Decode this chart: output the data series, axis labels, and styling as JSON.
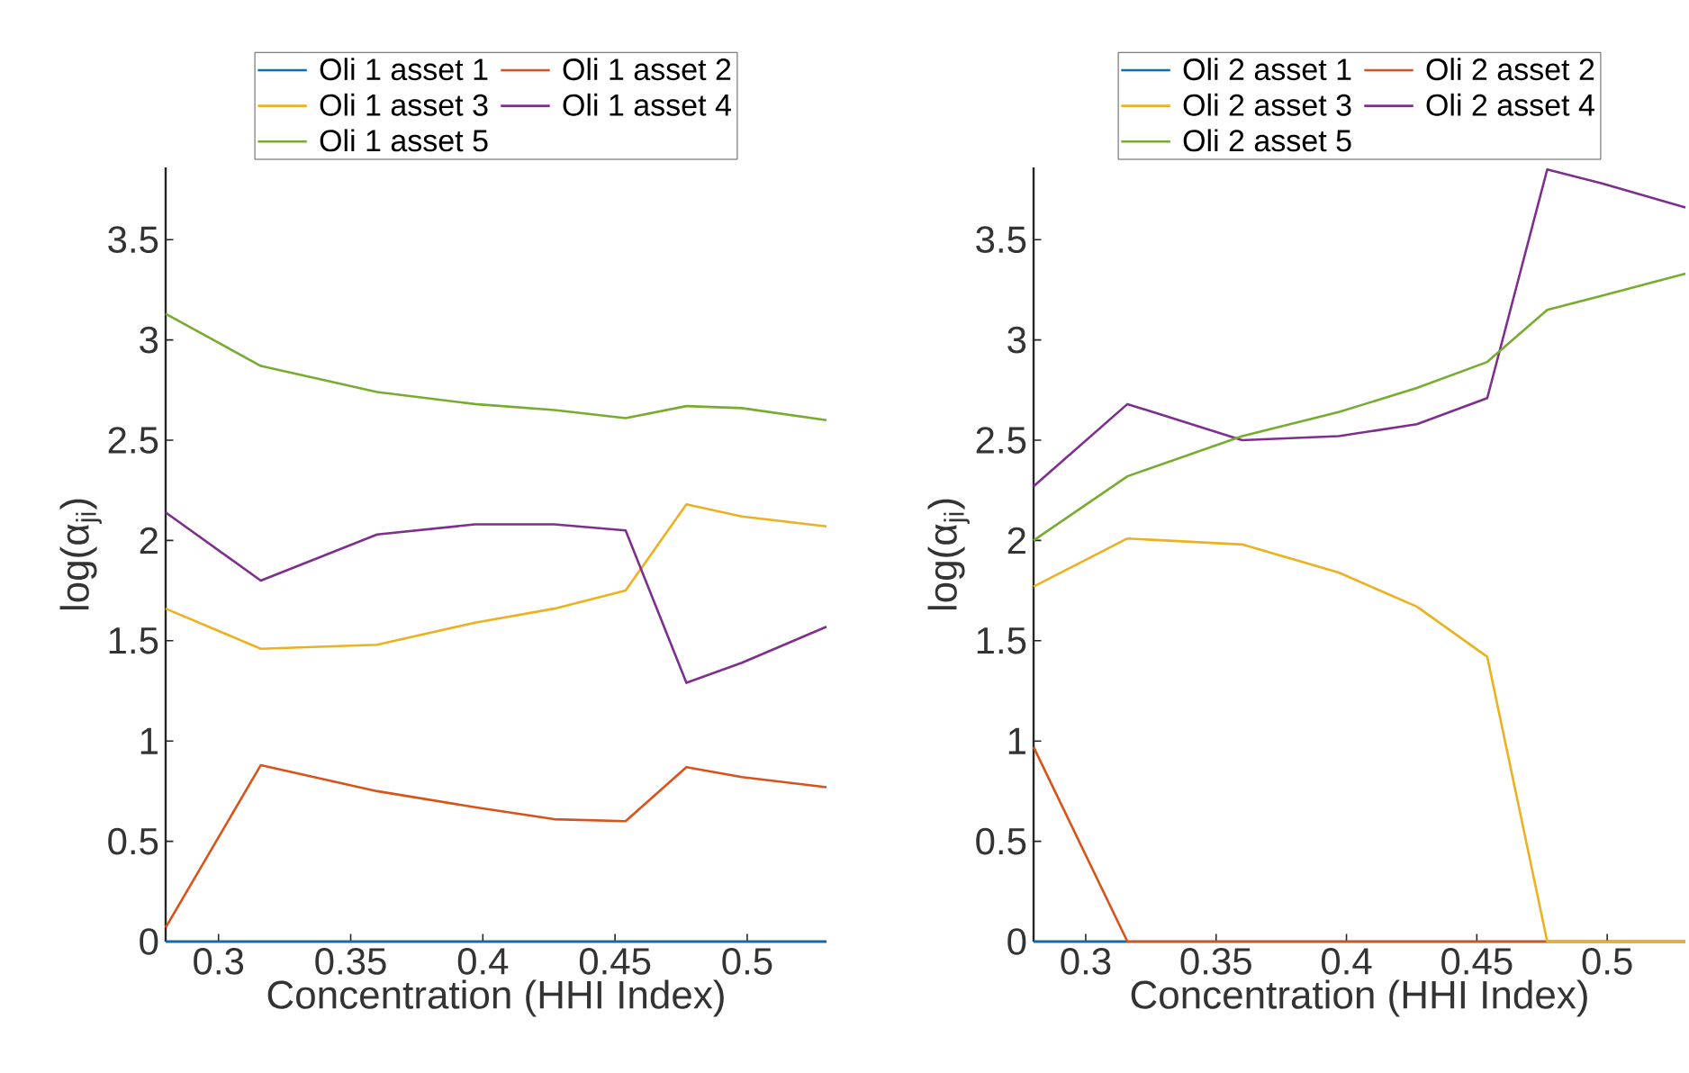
{
  "chart_data": [
    {
      "type": "line",
      "xlabel": "Concentration (HHI Index)",
      "ylabel": "log(α$_{ji}$)",
      "x": [
        0.28,
        0.316,
        0.36,
        0.397,
        0.427,
        0.454,
        0.477,
        0.498,
        0.53
      ],
      "xlim": [
        0.28,
        0.53
      ],
      "ylim": [
        0,
        3.86
      ],
      "xticks": [
        0.3,
        0.35,
        0.4,
        0.45,
        0.5
      ],
      "yticks": [
        0,
        0.5,
        1,
        1.5,
        2,
        2.5,
        3,
        3.5
      ],
      "legend": "top",
      "grid": false,
      "series": [
        {
          "name": "Oli 1 asset 1",
          "color": "#0072bd",
          "values": [
            0,
            0,
            0,
            0,
            0,
            0,
            0,
            0,
            0
          ]
        },
        {
          "name": "Oli 1 asset 2",
          "color": "#d95319",
          "values": [
            0.07,
            0.88,
            0.75,
            0.67,
            0.61,
            0.6,
            0.87,
            0.82,
            0.77
          ]
        },
        {
          "name": "Oli 1 asset 3",
          "color": "#edb120",
          "values": [
            1.66,
            1.46,
            1.48,
            1.59,
            1.66,
            1.75,
            2.18,
            2.12,
            2.07
          ]
        },
        {
          "name": "Oli 1 asset 4",
          "color": "#7e2f8e",
          "values": [
            2.14,
            1.8,
            2.03,
            2.08,
            2.08,
            2.05,
            1.29,
            1.39,
            1.57
          ]
        },
        {
          "name": "Oli 1 asset 5",
          "color": "#77ac30",
          "values": [
            3.13,
            2.87,
            2.74,
            2.68,
            2.65,
            2.61,
            2.67,
            2.66,
            2.6
          ]
        }
      ]
    },
    {
      "type": "line",
      "xlabel": "Concentration (HHI Index)",
      "ylabel": "log(α$_{ji}$)",
      "x": [
        0.28,
        0.316,
        0.36,
        0.397,
        0.427,
        0.454,
        0.477,
        0.498,
        0.53
      ],
      "xlim": [
        0.28,
        0.53
      ],
      "ylim": [
        0,
        3.86
      ],
      "xticks": [
        0.3,
        0.35,
        0.4,
        0.45,
        0.5
      ],
      "yticks": [
        0,
        0.5,
        1,
        1.5,
        2,
        2.5,
        3,
        3.5
      ],
      "legend": "top",
      "grid": false,
      "series": [
        {
          "name": "Oli 2 asset 1",
          "color": "#0072bd",
          "values": [
            0,
            0,
            null,
            null,
            null,
            null,
            null,
            null,
            null
          ]
        },
        {
          "name": "Oli 2 asset 2",
          "color": "#d95319",
          "values": [
            0.97,
            0,
            0,
            0,
            0,
            0,
            0,
            0,
            0
          ]
        },
        {
          "name": "Oli 2 asset 3",
          "color": "#edb120",
          "values": [
            1.77,
            2.01,
            1.98,
            1.84,
            1.67,
            1.42,
            0,
            0,
            0
          ]
        },
        {
          "name": "Oli 2 asset 4",
          "color": "#7e2f8e",
          "values": [
            2.27,
            2.68,
            2.5,
            2.52,
            2.58,
            2.71,
            3.85,
            3.78,
            3.66
          ]
        },
        {
          "name": "Oli 2 asset 5",
          "color": "#77ac30",
          "values": [
            2.0,
            2.32,
            2.52,
            2.64,
            2.76,
            2.89,
            3.15,
            3.22,
            3.33
          ]
        }
      ]
    }
  ]
}
